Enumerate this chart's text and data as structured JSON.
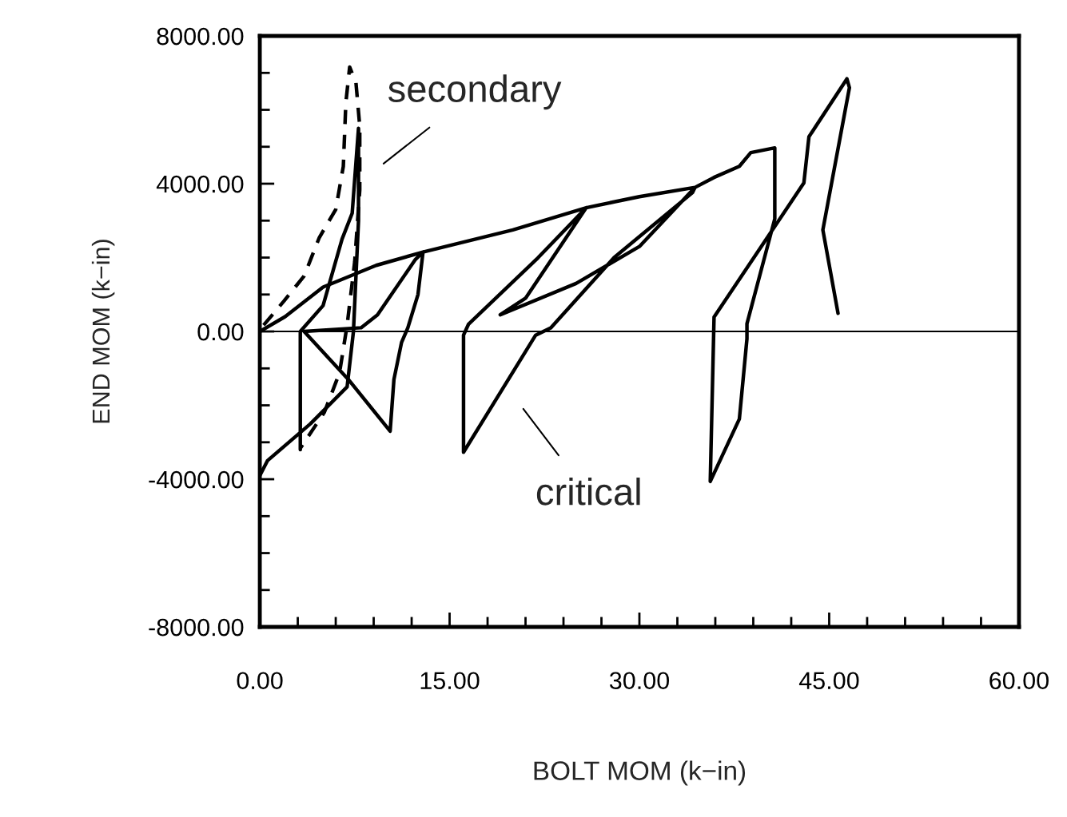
{
  "chart_data": {
    "type": "line",
    "xlabel": "BOLT MOM (k−in)",
    "ylabel": "END MOM (k−in)",
    "xlim": [
      0,
      60
    ],
    "ylim": [
      -8000,
      8000
    ],
    "xticks": [
      {
        "value": 0,
        "label": "0.00"
      },
      {
        "value": 3,
        "label": null
      },
      {
        "value": 6,
        "label": null
      },
      {
        "value": 9,
        "label": null
      },
      {
        "value": 12,
        "label": null
      },
      {
        "value": 15,
        "label": "15.00"
      },
      {
        "value": 18,
        "label": null
      },
      {
        "value": 21,
        "label": null
      },
      {
        "value": 24,
        "label": null
      },
      {
        "value": 27,
        "label": null
      },
      {
        "value": 30,
        "label": "30.00"
      },
      {
        "value": 33,
        "label": null
      },
      {
        "value": 36,
        "label": null
      },
      {
        "value": 39,
        "label": null
      },
      {
        "value": 42,
        "label": null
      },
      {
        "value": 45,
        "label": "45.00"
      },
      {
        "value": 48,
        "label": null
      },
      {
        "value": 51,
        "label": null
      },
      {
        "value": 54,
        "label": null
      },
      {
        "value": 57,
        "label": null
      },
      {
        "value": 60,
        "label": "60.00"
      }
    ],
    "yticks": [
      {
        "value": -8000,
        "label": "-8000.00"
      },
      {
        "value": -7000,
        "label": null
      },
      {
        "value": -6000,
        "label": null
      },
      {
        "value": -5000,
        "label": null
      },
      {
        "value": -4000,
        "label": "-4000.00"
      },
      {
        "value": -3000,
        "label": null
      },
      {
        "value": -2000,
        "label": null
      },
      {
        "value": -1000,
        "label": null
      },
      {
        "value": 0,
        "label": "0.00"
      },
      {
        "value": 1000,
        "label": null
      },
      {
        "value": 2000,
        "label": null
      },
      {
        "value": 3000,
        "label": null
      },
      {
        "value": 4000,
        "label": "4000.00"
      },
      {
        "value": 5000,
        "label": null
      },
      {
        "value": 6000,
        "label": null
      },
      {
        "value": 7000,
        "label": null
      },
      {
        "value": 8000,
        "label": "8000.00"
      }
    ],
    "grid": false,
    "legend": false,
    "ref_lines": [
      {
        "axis": "y",
        "value": 0,
        "color": "#000000"
      }
    ],
    "series": [
      {
        "line_style": "solid",
        "color": "#000000",
        "x": [
          0,
          2,
          5,
          9.2,
          12.9,
          12.3,
          9.3,
          8,
          3.5,
          7,
          10.3,
          10.6,
          11.2,
          11.7,
          12.5,
          12.9,
          20,
          25.8,
          22,
          16.5,
          16.1,
          16.1,
          21.8,
          23,
          28,
          34.2,
          34.4,
          30,
          25,
          19,
          21,
          25.8,
          30,
          34.4,
          35.9,
          37.9,
          38.8,
          40.7,
          40.7,
          38.5,
          38.5,
          37.9,
          35.6,
          35.9,
          43,
          43.4,
          46.4,
          46.6,
          44.5,
          45.7
        ],
        "values": [
          0,
          400,
          1200,
          1790,
          2150,
          1950,
          450,
          100,
          0,
          -1300,
          -2700,
          -1300,
          -300,
          100,
          1000,
          2150,
          2750,
          3350,
          2000,
          200,
          -100,
          -3270,
          -100,
          100,
          2000,
          3760,
          3900,
          2300,
          1300,
          450,
          900,
          3350,
          3650,
          3900,
          4170,
          4470,
          4840,
          4970,
          3050,
          210,
          -200,
          -2370,
          -4060,
          390,
          4020,
          5270,
          6840,
          6600,
          2750,
          490
        ]
      },
      {
        "line_style": "dashed",
        "color": "#000000",
        "x": [
          0.3,
          1.9,
          3.5,
          4.7,
          6.0,
          6.6,
          6.8,
          7.1,
          7.6,
          7.9,
          7.9,
          7.5,
          6.9,
          6.3,
          5.1,
          3.2
        ],
        "values": [
          170,
          820,
          1500,
          2540,
          3300,
          4470,
          6190,
          7160,
          6730,
          5550,
          3830,
          1890,
          170,
          -1120,
          -2190,
          -3160
        ]
      },
      {
        "line_style": "solid",
        "color": "#000000",
        "x": [
          3.2,
          3.2,
          5,
          6.5,
          7.3,
          7.8,
          7.8,
          7.4,
          6.9,
          4,
          0.6,
          0
        ],
        "values": [
          -3200,
          0,
          700,
          2500,
          3200,
          5500,
          3000,
          0,
          -1500,
          -2500,
          -3500,
          -3900
        ]
      }
    ],
    "annotations": [
      "secondary",
      "critical"
    ]
  }
}
